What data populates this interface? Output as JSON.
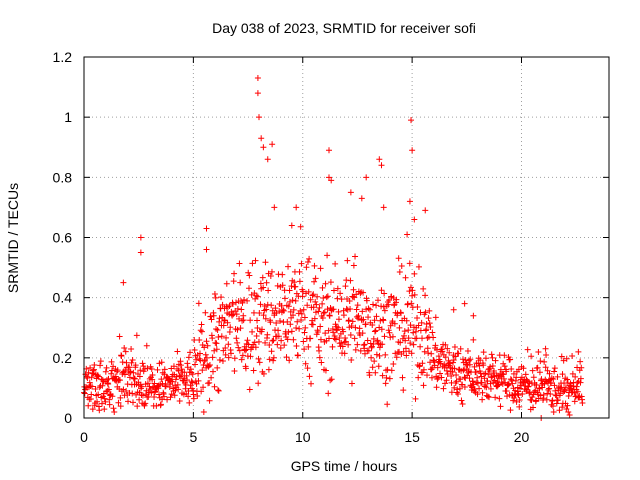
{
  "chart_data": {
    "type": "scatter",
    "title": "Day 038 of 2023, SRMTID for receiver sofi",
    "xlabel": "GPS time / hours",
    "ylabel": "SRMTID / TECUs",
    "xlim": [
      0,
      24
    ],
    "ylim": [
      0,
      1.2
    ],
    "xticks": [
      0,
      5,
      10,
      15,
      20
    ],
    "yticks": [
      0,
      0.2,
      0.4,
      0.6,
      0.8,
      1,
      1.2
    ],
    "xtick_labels": [
      "0",
      "5",
      "10",
      "15",
      "20"
    ],
    "ytick_labels": [
      "0",
      "0.2",
      "0.4",
      "0.6",
      "0.8",
      "1",
      "1.2"
    ],
    "grid": true,
    "marker": "+",
    "series": [
      {
        "name": "SRMTID",
        "color": "#ff0000",
        "profile": {
          "hours": [
            0,
            1,
            2,
            3,
            4,
            5,
            5.5,
            6,
            7,
            7.5,
            8,
            8.5,
            9,
            10,
            11,
            12,
            13,
            14,
            15,
            15.5,
            16,
            17,
            18,
            19,
            20,
            21,
            22,
            22.8
          ],
          "median": [
            0.1,
            0.1,
            0.15,
            0.1,
            0.11,
            0.13,
            0.2,
            0.26,
            0.3,
            0.3,
            0.33,
            0.32,
            0.34,
            0.36,
            0.3,
            0.32,
            0.3,
            0.28,
            0.3,
            0.28,
            0.2,
            0.15,
            0.14,
            0.13,
            0.11,
            0.1,
            0.09,
            0.1
          ],
          "spread": [
            0.05,
            0.05,
            0.07,
            0.05,
            0.05,
            0.06,
            0.09,
            0.11,
            0.12,
            0.13,
            0.13,
            0.12,
            0.12,
            0.11,
            0.11,
            0.11,
            0.11,
            0.11,
            0.11,
            0.1,
            0.07,
            0.06,
            0.05,
            0.05,
            0.05,
            0.05,
            0.05,
            0.05
          ]
        },
        "peaks": [
          {
            "x": 1.8,
            "y": 0.45
          },
          {
            "x": 2.6,
            "y": 0.6
          },
          {
            "x": 2.6,
            "y": 0.55
          },
          {
            "x": 5.6,
            "y": 0.63
          },
          {
            "x": 5.6,
            "y": 0.56
          },
          {
            "x": 7.95,
            "y": 1.13
          },
          {
            "x": 7.95,
            "y": 1.08
          },
          {
            "x": 8.0,
            "y": 1.0
          },
          {
            "x": 8.1,
            "y": 0.93
          },
          {
            "x": 8.2,
            "y": 0.9
          },
          {
            "x": 8.4,
            "y": 0.86
          },
          {
            "x": 8.6,
            "y": 0.91
          },
          {
            "x": 8.7,
            "y": 0.7
          },
          {
            "x": 9.7,
            "y": 0.7
          },
          {
            "x": 9.5,
            "y": 0.64
          },
          {
            "x": 11.2,
            "y": 0.89
          },
          {
            "x": 11.2,
            "y": 0.8
          },
          {
            "x": 11.3,
            "y": 0.79
          },
          {
            "x": 12.2,
            "y": 0.75
          },
          {
            "x": 12.7,
            "y": 0.73
          },
          {
            "x": 12.9,
            "y": 0.8
          },
          {
            "x": 13.5,
            "y": 0.86
          },
          {
            "x": 13.6,
            "y": 0.84
          },
          {
            "x": 13.7,
            "y": 0.7
          },
          {
            "x": 14.95,
            "y": 0.99
          },
          {
            "x": 15.0,
            "y": 0.89
          },
          {
            "x": 14.9,
            "y": 0.72
          },
          {
            "x": 15.1,
            "y": 0.66
          },
          {
            "x": 15.6,
            "y": 0.69
          },
          {
            "x": 16.9,
            "y": 0.36
          },
          {
            "x": 17.4,
            "y": 0.38
          },
          {
            "x": 17.8,
            "y": 0.34
          },
          {
            "x": 21.1,
            "y": 0.23
          },
          {
            "x": 22.6,
            "y": 0.22
          },
          {
            "x": 20.9,
            "y": 0.0
          },
          {
            "x": 22.2,
            "y": 0.01
          }
        ]
      }
    ]
  }
}
